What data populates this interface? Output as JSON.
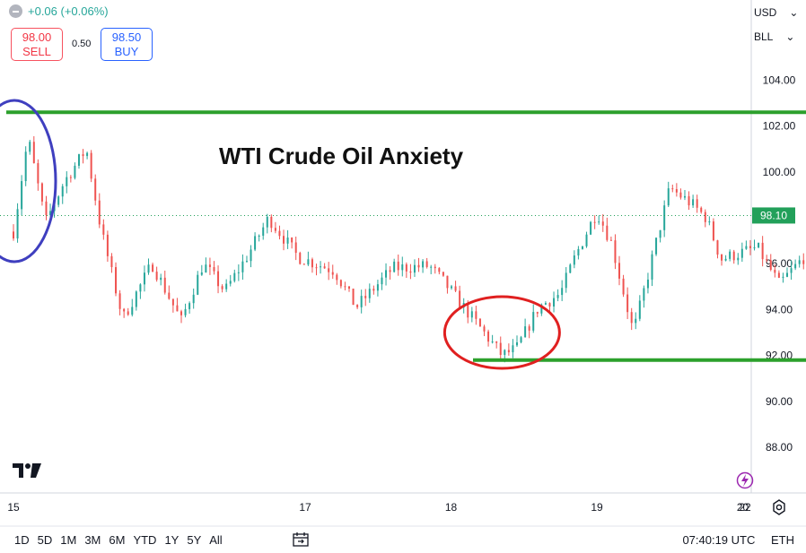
{
  "header": {
    "change": "+0.06 (+0.06%)",
    "sell_price": "98.00",
    "sell_label": "SELL",
    "spread": "0.50",
    "buy_price": "98.50",
    "buy_label": "BUY"
  },
  "axis_selectors": {
    "currency": "USD",
    "unit": "BLL"
  },
  "time_ranges": [
    "1D",
    "5D",
    "1M",
    "3M",
    "6M",
    "YTD",
    "1Y",
    "5Y",
    "All"
  ],
  "status": {
    "clock": "07:40:19 UTC",
    "extended": "ETH"
  },
  "colors": {
    "up": "#26a69a",
    "down": "#ef5350",
    "level_line": "#2ca02c",
    "blue_circle": "#3f3fbf",
    "red_circle": "#e02020",
    "last_price_bg": "#22a05a"
  },
  "icons": [
    "tradingview-logo",
    "lightning-icon",
    "gear-icon",
    "compare-icon",
    "dash-icon"
  ],
  "chart_data": {
    "type": "candlestick",
    "title": "WTI Crude Oil Anxiety",
    "x_ticks": [
      "15",
      "17",
      "18",
      "19",
      "20",
      "22"
    ],
    "y_ticks": [
      "104.00",
      "102.00",
      "100.00",
      "98.00",
      "96.00",
      "94.00",
      "92.00",
      "90.00",
      "88.00"
    ],
    "ylim": [
      86.5,
      105.5
    ],
    "last_price": "98.10",
    "path_points": [
      [
        15.0,
        97.4
      ],
      [
        15.1,
        101.5
      ],
      [
        15.22,
        97.8
      ],
      [
        15.35,
        99.6
      ],
      [
        15.5,
        101.0
      ],
      [
        15.6,
        97.5
      ],
      [
        15.75,
        93.6
      ],
      [
        15.95,
        96.0
      ],
      [
        16.15,
        93.5
      ],
      [
        16.3,
        96.0
      ],
      [
        16.45,
        94.8
      ],
      [
        16.6,
        96.3
      ],
      [
        16.75,
        98.0
      ],
      [
        16.95,
        96.3
      ],
      [
        17.2,
        95.7
      ],
      [
        17.35,
        94.1
      ],
      [
        17.6,
        95.8
      ],
      [
        17.85,
        95.9
      ],
      [
        17.95,
        95.2
      ],
      [
        18.05,
        94.4
      ],
      [
        18.2,
        93.2
      ],
      [
        18.35,
        92.0
      ],
      [
        18.45,
        92.3
      ],
      [
        18.6,
        94.1
      ],
      [
        18.75,
        94.7
      ],
      [
        18.85,
        96.3
      ],
      [
        19.0,
        98.3
      ],
      [
        19.1,
        96.9
      ],
      [
        19.25,
        93.0
      ],
      [
        19.35,
        95.5
      ],
      [
        19.5,
        99.3
      ],
      [
        19.65,
        98.6
      ],
      [
        19.75,
        98.0
      ],
      [
        19.85,
        96.2
      ],
      [
        20.1,
        96.7
      ],
      [
        20.25,
        95.1
      ],
      [
        20.45,
        96.5
      ],
      [
        20.6,
        95.8
      ],
      [
        20.7,
        99.7
      ],
      [
        20.8,
        96.2
      ],
      [
        20.9,
        93.1
      ],
      [
        21.1,
        94.5
      ],
      [
        21.3,
        93.0
      ],
      [
        21.45,
        94.2
      ],
      [
        21.6,
        93.8
      ],
      [
        21.8,
        95.5
      ],
      [
        21.95,
        94.1
      ],
      [
        22.1,
        96.3
      ],
      [
        22.3,
        97.9
      ],
      [
        22.4,
        98.6
      ],
      [
        22.55,
        98.1
      ]
    ],
    "annotations": [
      {
        "type": "horizontal_line",
        "value": 102.6,
        "from": 15.0,
        "to": 22.35
      },
      {
        "type": "horizontal_line",
        "value": 91.8,
        "from": 18.2,
        "to": 22.4
      },
      {
        "type": "circle",
        "center_x": 15.0,
        "center_y": 99.6,
        "color": "blue"
      },
      {
        "type": "circle",
        "center_x": 18.35,
        "center_y": 93.0,
        "color": "red"
      }
    ]
  }
}
